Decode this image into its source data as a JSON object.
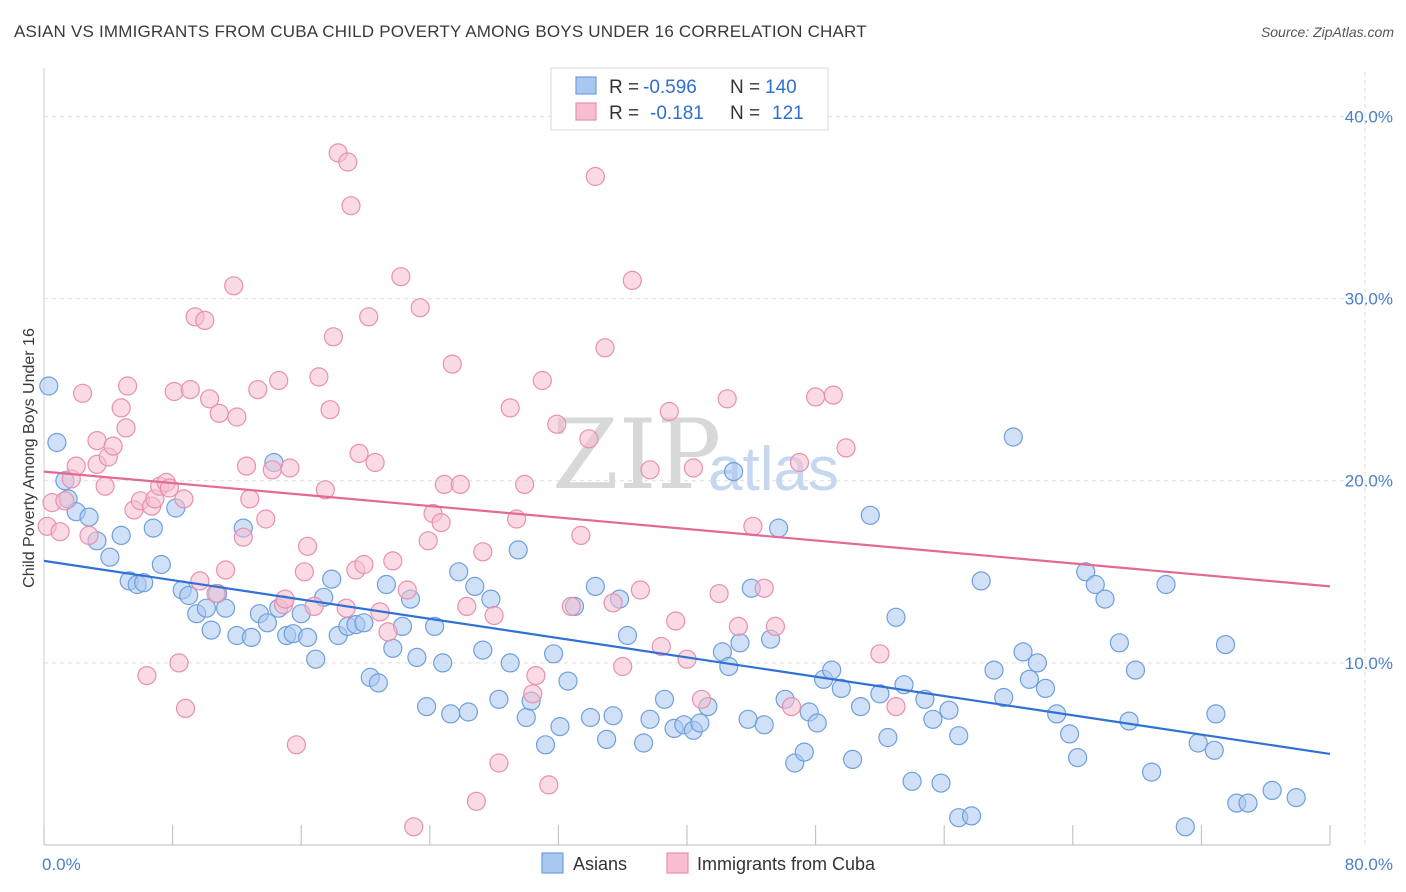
{
  "header": {
    "title": "ASIAN VS IMMIGRANTS FROM CUBA CHILD POVERTY AMONG BOYS UNDER 16 CORRELATION CHART",
    "source": "Source: ZipAtlas.com"
  },
  "watermark": {
    "zip": "ZIP",
    "atlas": "atlas"
  },
  "colors": {
    "asians_fill": "#a9c8f0",
    "asians_stroke": "#6f9fdc",
    "asians_line": "#2f72d4",
    "cuba_fill": "#f6bed0",
    "cuba_stroke": "#e98fb0",
    "cuba_line": "#e46a93",
    "grid": "#dddddd",
    "tick_text": "#4a7fc9"
  },
  "legend": {
    "rows": [
      {
        "r_label": "R =",
        "r_value": "-0.596",
        "n_label": "N =",
        "n_value": "140"
      },
      {
        "r_label": "R =",
        "r_value": "-0.181",
        "n_label": "N =",
        "n_value": "121"
      }
    ]
  },
  "chart_data": {
    "type": "scatter",
    "title": "ASIAN VS IMMIGRANTS FROM CUBA CHILD POVERTY AMONG BOYS UNDER 16 CORRELATION CHART",
    "xlabel": "",
    "ylabel": "Child Poverty Among Boys Under 16",
    "xlim": [
      0,
      80
    ],
    "ylim": [
      0,
      42
    ],
    "x_tick_labels": [
      "0.0%",
      "80.0%"
    ],
    "y_ticks": [
      10,
      20,
      30,
      40
    ],
    "y_tick_labels": [
      "10.0%",
      "20.0%",
      "30.0%",
      "40.0%"
    ],
    "grid": true,
    "legend_position": "top-center",
    "series": [
      {
        "name": "Asians",
        "r": -0.596,
        "n": 140,
        "trend": {
          "x": [
            0,
            80
          ],
          "y": [
            15.6,
            5.0
          ]
        },
        "points": [
          [
            0.3,
            25.2
          ],
          [
            0.8,
            22.1
          ],
          [
            1.3,
            20.0
          ],
          [
            1.5,
            19.0
          ],
          [
            2.0,
            18.3
          ],
          [
            2.8,
            18.0
          ],
          [
            3.3,
            16.7
          ],
          [
            4.1,
            15.8
          ],
          [
            4.8,
            17.0
          ],
          [
            5.3,
            14.5
          ],
          [
            5.8,
            14.3
          ],
          [
            6.2,
            14.4
          ],
          [
            6.8,
            17.4
          ],
          [
            7.3,
            15.4
          ],
          [
            8.2,
            18.5
          ],
          [
            8.6,
            14.0
          ],
          [
            9.0,
            13.7
          ],
          [
            9.5,
            12.7
          ],
          [
            10.1,
            13.0
          ],
          [
            10.4,
            11.8
          ],
          [
            10.8,
            13.8
          ],
          [
            11.3,
            13.0
          ],
          [
            12.0,
            11.5
          ],
          [
            12.4,
            17.4
          ],
          [
            12.9,
            11.4
          ],
          [
            13.4,
            12.7
          ],
          [
            13.9,
            12.2
          ],
          [
            14.3,
            21.0
          ],
          [
            14.6,
            13.0
          ],
          [
            15.1,
            11.5
          ],
          [
            15.5,
            11.6
          ],
          [
            16.0,
            12.7
          ],
          [
            16.4,
            11.4
          ],
          [
            16.9,
            10.2
          ],
          [
            17.4,
            13.6
          ],
          [
            17.9,
            14.6
          ],
          [
            18.3,
            11.5
          ],
          [
            18.9,
            12.0
          ],
          [
            19.4,
            12.1
          ],
          [
            19.9,
            12.2
          ],
          [
            20.3,
            9.2
          ],
          [
            20.8,
            8.9
          ],
          [
            21.3,
            14.3
          ],
          [
            21.7,
            10.8
          ],
          [
            22.3,
            12.0
          ],
          [
            22.8,
            13.5
          ],
          [
            23.2,
            10.3
          ],
          [
            23.8,
            7.6
          ],
          [
            24.3,
            12.0
          ],
          [
            24.8,
            10.0
          ],
          [
            25.3,
            7.2
          ],
          [
            25.8,
            15.0
          ],
          [
            26.4,
            7.3
          ],
          [
            26.8,
            14.2
          ],
          [
            27.3,
            10.7
          ],
          [
            27.8,
            13.5
          ],
          [
            28.3,
            8.0
          ],
          [
            29.0,
            10.0
          ],
          [
            29.5,
            16.2
          ],
          [
            30.0,
            7.0
          ],
          [
            30.3,
            7.9
          ],
          [
            31.2,
            5.5
          ],
          [
            31.7,
            10.5
          ],
          [
            32.1,
            6.5
          ],
          [
            32.6,
            9.0
          ],
          [
            33.0,
            13.1
          ],
          [
            34.0,
            7.0
          ],
          [
            34.3,
            14.2
          ],
          [
            35.0,
            5.8
          ],
          [
            35.4,
            7.1
          ],
          [
            35.8,
            13.5
          ],
          [
            36.3,
            11.5
          ],
          [
            37.3,
            5.6
          ],
          [
            37.7,
            6.9
          ],
          [
            38.6,
            8.0
          ],
          [
            39.2,
            6.4
          ],
          [
            39.8,
            6.6
          ],
          [
            40.4,
            6.3
          ],
          [
            40.8,
            6.7
          ],
          [
            41.3,
            7.6
          ],
          [
            42.2,
            10.6
          ],
          [
            42.6,
            9.8
          ],
          [
            42.9,
            20.5
          ],
          [
            43.3,
            11.1
          ],
          [
            43.8,
            6.9
          ],
          [
            44.0,
            14.1
          ],
          [
            44.8,
            6.6
          ],
          [
            45.2,
            11.3
          ],
          [
            45.7,
            17.4
          ],
          [
            46.1,
            8.0
          ],
          [
            46.7,
            4.5
          ],
          [
            47.3,
            5.1
          ],
          [
            47.6,
            7.3
          ],
          [
            48.1,
            6.7
          ],
          [
            48.5,
            9.1
          ],
          [
            49.0,
            9.6
          ],
          [
            49.6,
            8.6
          ],
          [
            50.3,
            4.7
          ],
          [
            50.8,
            7.6
          ],
          [
            51.4,
            18.1
          ],
          [
            52.0,
            8.3
          ],
          [
            52.5,
            5.9
          ],
          [
            53.0,
            12.5
          ],
          [
            53.5,
            8.8
          ],
          [
            54.0,
            3.5
          ],
          [
            54.8,
            8.0
          ],
          [
            55.3,
            6.9
          ],
          [
            55.8,
            3.4
          ],
          [
            56.3,
            7.4
          ],
          [
            56.9,
            6.0
          ],
          [
            56.9,
            1.5
          ],
          [
            57.7,
            1.6
          ],
          [
            58.3,
            14.5
          ],
          [
            59.1,
            9.6
          ],
          [
            59.7,
            8.1
          ],
          [
            60.3,
            22.4
          ],
          [
            60.9,
            10.6
          ],
          [
            61.3,
            9.1
          ],
          [
            61.8,
            10.0
          ],
          [
            62.3,
            8.6
          ],
          [
            63.0,
            7.2
          ],
          [
            63.8,
            6.1
          ],
          [
            64.3,
            4.8
          ],
          [
            64.8,
            15.0
          ],
          [
            65.4,
            14.3
          ],
          [
            66.0,
            13.5
          ],
          [
            66.9,
            11.1
          ],
          [
            67.5,
            6.8
          ],
          [
            67.9,
            9.6
          ],
          [
            68.9,
            4.0
          ],
          [
            69.8,
            14.3
          ],
          [
            71.0,
            1.0
          ],
          [
            71.8,
            5.6
          ],
          [
            72.8,
            5.2
          ],
          [
            72.9,
            7.2
          ],
          [
            73.5,
            11.0
          ],
          [
            74.2,
            2.3
          ],
          [
            74.9,
            2.3
          ],
          [
            76.4,
            3.0
          ],
          [
            77.9,
            2.6
          ]
        ]
      },
      {
        "name": "Immigrants from Cuba",
        "r": -0.181,
        "n": 121,
        "trend": {
          "x": [
            0,
            80
          ],
          "y": [
            20.5,
            14.2
          ]
        },
        "points": [
          [
            0.2,
            17.5
          ],
          [
            0.5,
            18.8
          ],
          [
            1.0,
            17.2
          ],
          [
            1.3,
            18.9
          ],
          [
            1.7,
            20.1
          ],
          [
            2.0,
            20.8
          ],
          [
            2.4,
            24.8
          ],
          [
            2.8,
            17.0
          ],
          [
            3.3,
            20.9
          ],
          [
            3.3,
            22.2
          ],
          [
            3.8,
            19.7
          ],
          [
            4.0,
            21.3
          ],
          [
            4.3,
            21.9
          ],
          [
            4.8,
            24.0
          ],
          [
            5.1,
            22.9
          ],
          [
            5.2,
            25.2
          ],
          [
            5.6,
            18.4
          ],
          [
            6.0,
            18.9
          ],
          [
            6.4,
            9.3
          ],
          [
            6.7,
            18.6
          ],
          [
            6.9,
            19.0
          ],
          [
            7.2,
            19.7
          ],
          [
            7.6,
            19.9
          ],
          [
            7.8,
            19.6
          ],
          [
            8.1,
            24.9
          ],
          [
            8.4,
            10.0
          ],
          [
            8.7,
            19.0
          ],
          [
            8.8,
            7.5
          ],
          [
            9.1,
            25.0
          ],
          [
            9.4,
            29.0
          ],
          [
            9.7,
            14.5
          ],
          [
            10.0,
            28.8
          ],
          [
            10.3,
            24.5
          ],
          [
            10.7,
            13.8
          ],
          [
            10.9,
            23.7
          ],
          [
            11.3,
            15.1
          ],
          [
            11.8,
            30.7
          ],
          [
            12.0,
            23.5
          ],
          [
            12.4,
            16.9
          ],
          [
            12.6,
            20.8
          ],
          [
            12.8,
            19.0
          ],
          [
            13.3,
            25.0
          ],
          [
            13.8,
            17.9
          ],
          [
            14.2,
            20.6
          ],
          [
            14.6,
            25.5
          ],
          [
            14.9,
            13.2
          ],
          [
            15.0,
            13.5
          ],
          [
            15.3,
            20.7
          ],
          [
            15.7,
            5.5
          ],
          [
            16.2,
            15.0
          ],
          [
            16.4,
            16.4
          ],
          [
            16.8,
            13.1
          ],
          [
            17.1,
            25.7
          ],
          [
            17.5,
            19.5
          ],
          [
            17.8,
            23.9
          ],
          [
            18.0,
            27.9
          ],
          [
            18.3,
            38.0
          ],
          [
            18.8,
            13.0
          ],
          [
            18.9,
            37.5
          ],
          [
            19.1,
            35.1
          ],
          [
            19.4,
            15.1
          ],
          [
            19.6,
            21.5
          ],
          [
            19.9,
            15.4
          ],
          [
            20.2,
            29.0
          ],
          [
            20.6,
            21.0
          ],
          [
            20.9,
            12.8
          ],
          [
            21.4,
            11.7
          ],
          [
            21.7,
            15.6
          ],
          [
            22.2,
            31.2
          ],
          [
            22.6,
            14.0
          ],
          [
            23.0,
            1.0
          ],
          [
            23.4,
            29.5
          ],
          [
            23.9,
            16.7
          ],
          [
            24.2,
            18.2
          ],
          [
            24.7,
            17.7
          ],
          [
            24.9,
            19.8
          ],
          [
            25.4,
            26.4
          ],
          [
            25.9,
            19.8
          ],
          [
            26.3,
            13.1
          ],
          [
            26.9,
            2.4
          ],
          [
            27.3,
            16.1
          ],
          [
            28.0,
            12.6
          ],
          [
            28.3,
            4.5
          ],
          [
            29.0,
            24.0
          ],
          [
            29.4,
            17.9
          ],
          [
            29.9,
            19.8
          ],
          [
            30.4,
            8.3
          ],
          [
            30.6,
            9.3
          ],
          [
            31.0,
            25.5
          ],
          [
            31.4,
            3.3
          ],
          [
            31.9,
            23.1
          ],
          [
            32.8,
            13.1
          ],
          [
            33.4,
            17.0
          ],
          [
            33.9,
            22.3
          ],
          [
            34.3,
            36.7
          ],
          [
            34.9,
            27.3
          ],
          [
            35.4,
            13.3
          ],
          [
            36.0,
            9.8
          ],
          [
            36.6,
            31.0
          ],
          [
            37.1,
            14.0
          ],
          [
            37.7,
            20.6
          ],
          [
            38.4,
            10.9
          ],
          [
            38.9,
            23.8
          ],
          [
            39.3,
            12.3
          ],
          [
            40.0,
            10.2
          ],
          [
            40.4,
            20.7
          ],
          [
            40.9,
            8.0
          ],
          [
            42.0,
            13.8
          ],
          [
            42.5,
            24.5
          ],
          [
            43.2,
            12.0
          ],
          [
            44.1,
            17.5
          ],
          [
            44.8,
            14.1
          ],
          [
            45.5,
            12.0
          ],
          [
            46.5,
            7.6
          ],
          [
            47.0,
            21.0
          ],
          [
            48.0,
            24.6
          ],
          [
            49.1,
            24.7
          ],
          [
            49.9,
            21.8
          ],
          [
            52.0,
            10.5
          ],
          [
            53.0,
            7.6
          ]
        ]
      }
    ]
  },
  "bottom_legend": {
    "items": [
      {
        "label": "Asians"
      },
      {
        "label": "Immigrants from Cuba"
      }
    ]
  }
}
